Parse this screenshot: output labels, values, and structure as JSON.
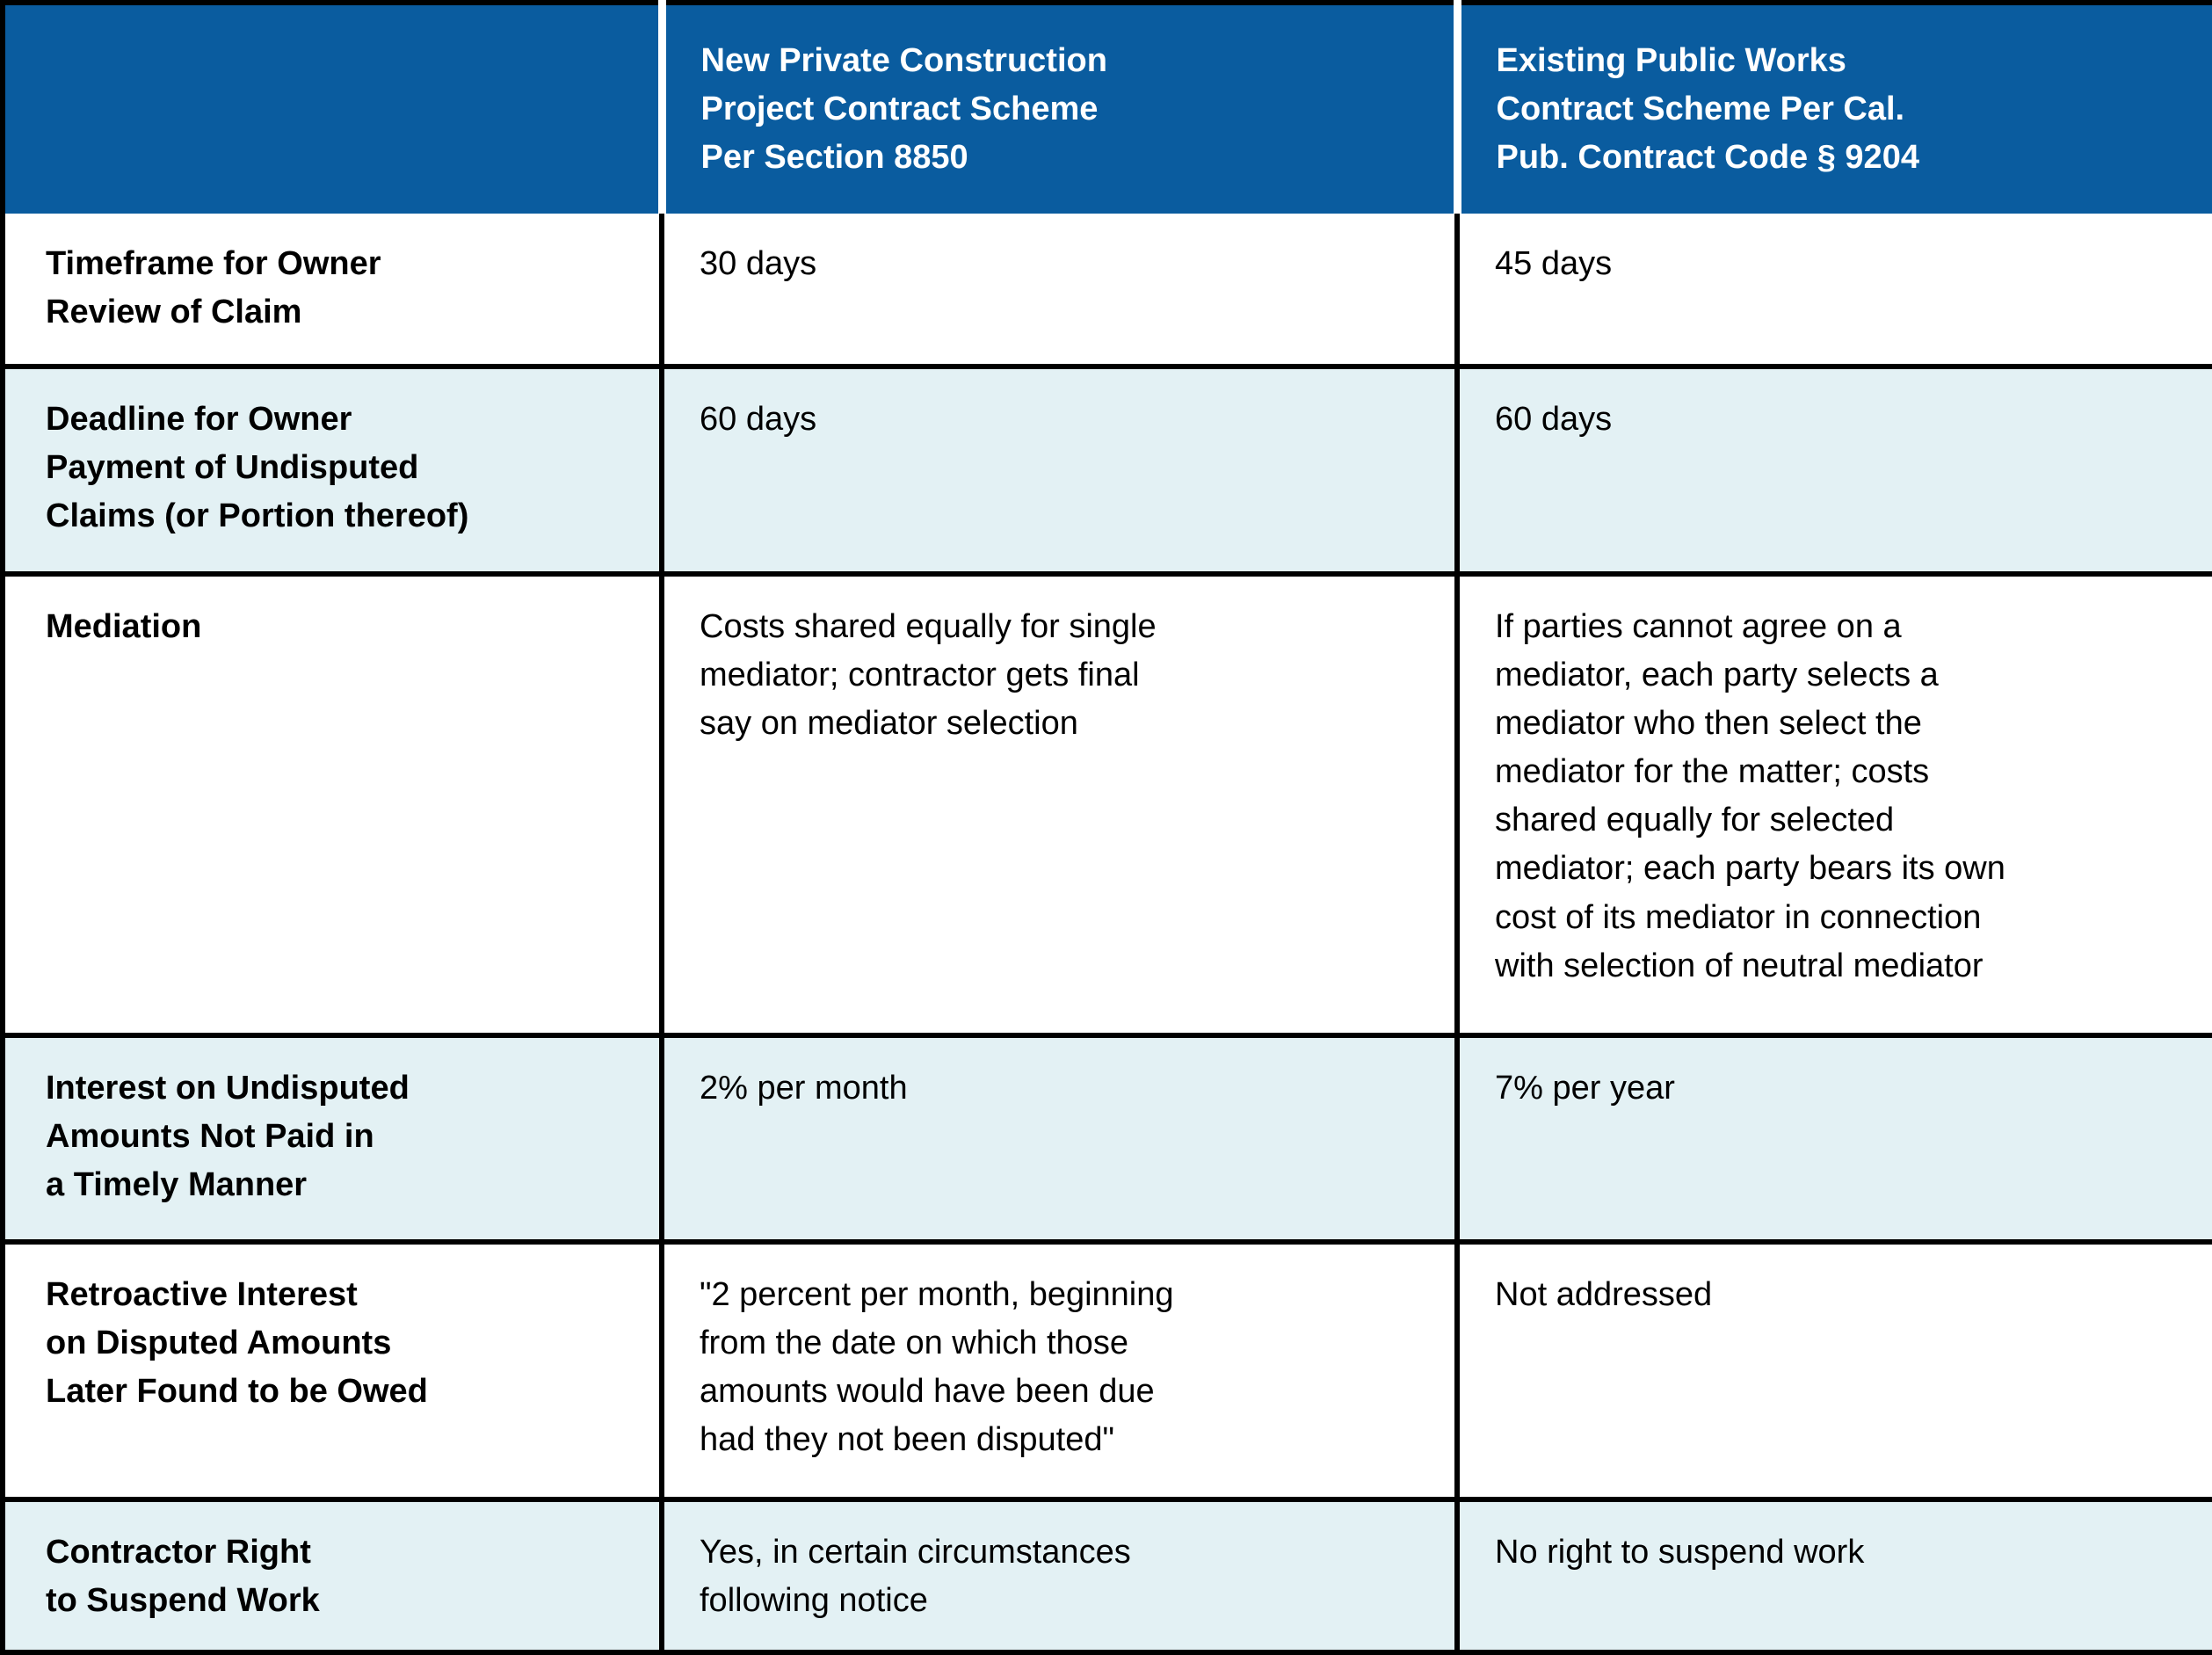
{
  "table": {
    "colors": {
      "header_bg": "#0A5C9F",
      "shaded_row_bg": "#E3F1F4",
      "border": "#000000",
      "header_text": "#FFFFFF",
      "body_text": "#000000"
    },
    "columns": [
      {
        "header": ""
      },
      {
        "header": "New Private Construction\nProject Contract Scheme\nPer Section 8850"
      },
      {
        "header": "Existing Public Works\nContract Scheme Per Cal.\nPub. Contract Code § 9204"
      }
    ],
    "rows": [
      {
        "label": "Timeframe for Owner\nReview of Claim",
        "private_scheme": "30 days",
        "public_scheme": "45 days"
      },
      {
        "label": "Deadline for Owner\nPayment of Undisputed\nClaims (or Portion thereof)",
        "private_scheme": "60 days",
        "public_scheme": "60 days"
      },
      {
        "label": "Mediation",
        "private_scheme": "Costs shared equally for single\nmediator; contractor gets final\nsay on mediator selection",
        "public_scheme": "If parties cannot agree on a\nmediator, each party selects a\nmediator who then select the\nmediator for the matter; costs\nshared equally for selected\nmediator; each party bears its own\ncost of its mediator in connection\nwith selection of neutral mediator"
      },
      {
        "label": "Interest on Undisputed\nAmounts Not Paid in\na Timely Manner",
        "private_scheme": "2% per month",
        "public_scheme": "7% per year"
      },
      {
        "label": "Retroactive Interest\non Disputed Amounts\nLater Found to be Owed",
        "private_scheme": "\"2 percent per month, beginning\nfrom the date on which those\namounts would have been due\nhad they not been disputed\"",
        "public_scheme": "Not addressed"
      },
      {
        "label": "Contractor Right\nto Suspend Work",
        "private_scheme": "Yes, in certain circumstances\nfollowing notice",
        "public_scheme": "No right to suspend work"
      }
    ]
  }
}
